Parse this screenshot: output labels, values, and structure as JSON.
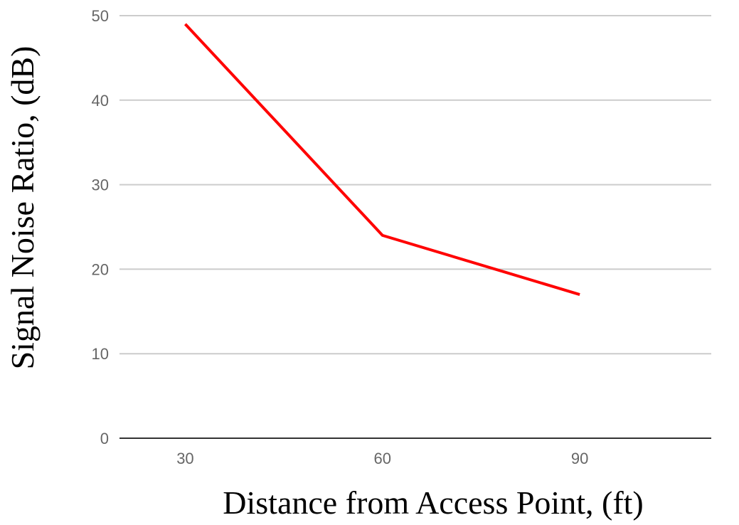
{
  "chart_data": {
    "type": "line",
    "title": "",
    "xlabel": "Distance from Access Point, (ft)",
    "ylabel": "Signal Noise Ratio, (dB)",
    "x": [
      30,
      60,
      90
    ],
    "x_tick_labels": [
      "30",
      "60",
      "90"
    ],
    "y_tick_labels": [
      "0",
      "10",
      "20",
      "30",
      "40",
      "50"
    ],
    "ylim": [
      0,
      50
    ],
    "grid": true,
    "legend": "none",
    "series": [
      {
        "values": [
          49,
          24,
          17
        ],
        "color": "#ff0000"
      }
    ]
  }
}
